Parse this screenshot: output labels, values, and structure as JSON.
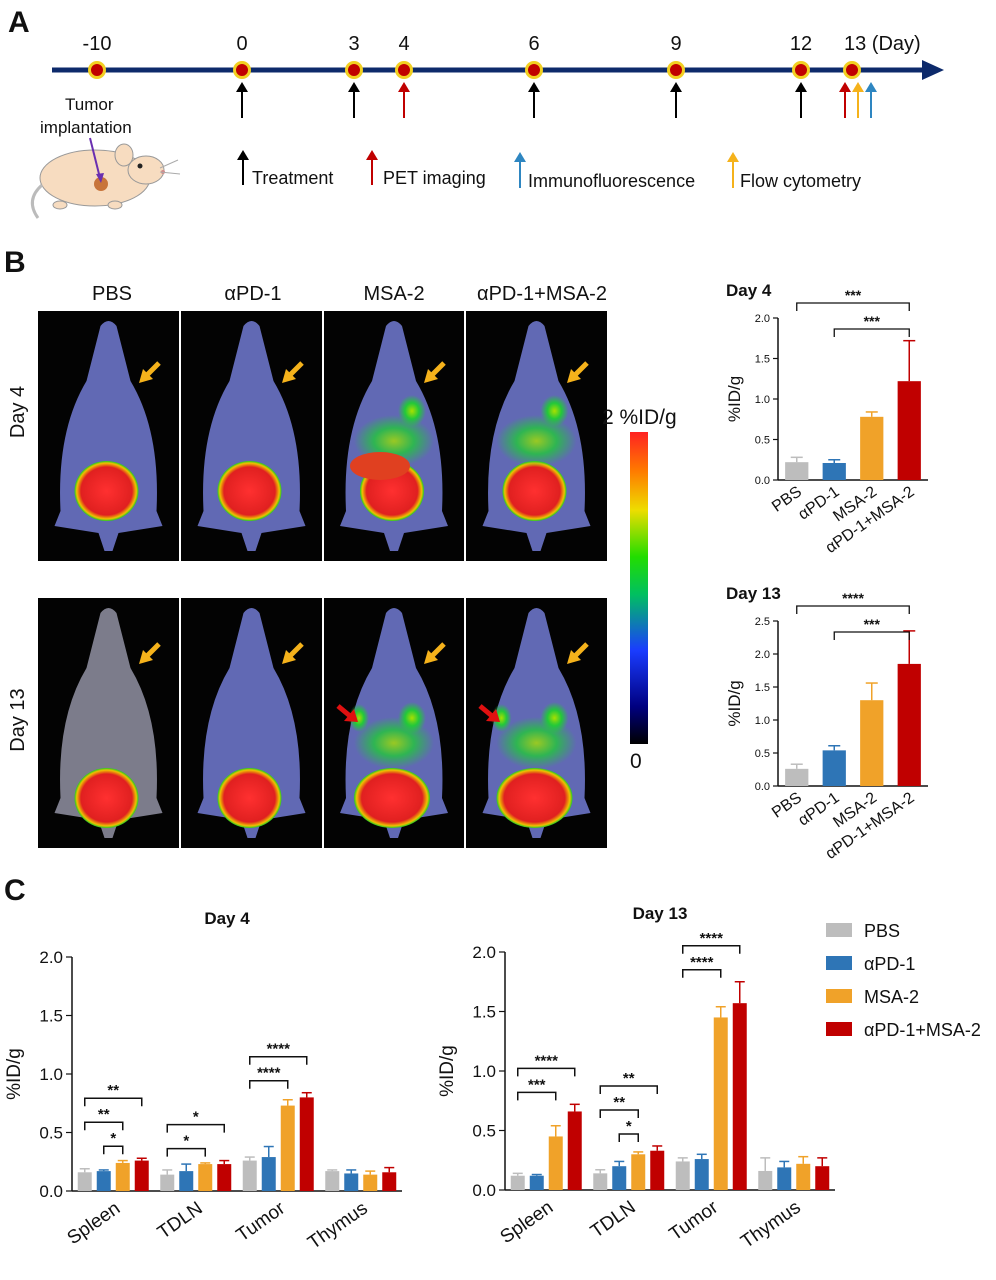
{
  "panel_labels": [
    "A",
    "B",
    "C"
  ],
  "colors": {
    "PBS": "#bdbdbd",
    "aPD-1": "#2e75b6",
    "MSA-2": "#f0a229",
    "combo": "#c00000",
    "timeline": "#0d2a6b",
    "treatment_arrow": "#000000",
    "pet_arrow": "#c00000",
    "if_arrow": "#2e86c1",
    "flow_arrow": "#f5b21b"
  },
  "timeline": {
    "days": [
      "-10",
      "0",
      "3",
      "4",
      "6",
      "9",
      "12",
      "13 (Day)"
    ],
    "tumor_label_line1": "Tumor",
    "tumor_label_line2": "implantation",
    "legend": {
      "treatment": "Treatment",
      "pet": "PET imaging",
      "immuno": "Immunofluorescence",
      "flow": "Flow cytometry"
    }
  },
  "imaging": {
    "columns": [
      "PBS",
      "αPD-1",
      "MSA-2",
      "αPD-1+MSA-2"
    ],
    "rows": [
      "Day 4",
      "Day 13"
    ],
    "colorbar_max": "2 %ID/g",
    "colorbar_min": "0"
  },
  "chart_data": [
    {
      "type": "bar",
      "title": "Day 4",
      "ylabel": "%ID/g",
      "categories": [
        "PBS",
        "αPD-1",
        "MSA-2",
        "αPD-1+MSA-2"
      ],
      "values": [
        0.22,
        0.21,
        0.78,
        1.22
      ],
      "errors": [
        0.06,
        0.04,
        0.06,
        0.5
      ],
      "ylim": [
        0,
        2.0
      ],
      "yticks": [
        "0.0",
        "0.5",
        "1.0",
        "1.5",
        "2.0"
      ],
      "significance": [
        {
          "from": "PBS",
          "to": "αPD-1+MSA-2",
          "label": "***"
        },
        {
          "from": "αPD-1",
          "to": "αPD-1+MSA-2",
          "label": "***"
        }
      ]
    },
    {
      "type": "bar",
      "title": "Day 13",
      "ylabel": "%ID/g",
      "categories": [
        "PBS",
        "αPD-1",
        "MSA-2",
        "αPD-1+MSA-2"
      ],
      "values": [
        0.26,
        0.54,
        1.3,
        1.85
      ],
      "errors": [
        0.07,
        0.07,
        0.26,
        0.5
      ],
      "ylim": [
        0,
        2.5
      ],
      "yticks": [
        "0.0",
        "0.5",
        "1.0",
        "1.5",
        "2.0",
        "2.5"
      ],
      "significance": [
        {
          "from": "PBS",
          "to": "αPD-1+MSA-2",
          "label": "****"
        },
        {
          "from": "αPD-1",
          "to": "αPD-1+MSA-2",
          "label": "***"
        }
      ]
    },
    {
      "type": "bar",
      "title": "Day 4",
      "ylabel": "%ID/g",
      "categories": [
        "Spleen",
        "TDLN",
        "Tumor",
        "Thymus"
      ],
      "series": [
        {
          "name": "PBS",
          "values": [
            0.16,
            0.14,
            0.26,
            0.17
          ],
          "errors": [
            0.03,
            0.04,
            0.03,
            0.01
          ]
        },
        {
          "name": "αPD-1",
          "values": [
            0.17,
            0.17,
            0.29,
            0.15
          ],
          "errors": [
            0.01,
            0.06,
            0.09,
            0.03
          ]
        },
        {
          "name": "MSA-2",
          "values": [
            0.24,
            0.23,
            0.73,
            0.14
          ],
          "errors": [
            0.02,
            0.01,
            0.05,
            0.03
          ]
        },
        {
          "name": "αPD-1+MSA-2",
          "values": [
            0.26,
            0.23,
            0.8,
            0.16
          ],
          "errors": [
            0.02,
            0.03,
            0.04,
            0.04
          ]
        }
      ],
      "ylim": [
        0,
        2.0
      ],
      "yticks": [
        "0.0",
        "0.5",
        "1.0",
        "1.5",
        "2.0"
      ],
      "significance": [
        {
          "group": 0,
          "from": 0,
          "to": 3,
          "label": "**",
          "level": 3
        },
        {
          "group": 0,
          "from": 0,
          "to": 2,
          "label": "**",
          "level": 2
        },
        {
          "group": 0,
          "from": 1,
          "to": 2,
          "label": "*",
          "level": 1
        },
        {
          "group": 1,
          "from": 0,
          "to": 3,
          "label": "*",
          "level": 2
        },
        {
          "group": 1,
          "from": 0,
          "to": 2,
          "label": "*",
          "level": 1
        },
        {
          "group": 2,
          "from": 0,
          "to": 3,
          "label": "****",
          "level": 2
        },
        {
          "group": 2,
          "from": 0,
          "to": 2,
          "label": "****",
          "level": 1
        }
      ]
    },
    {
      "type": "bar",
      "title": "Day 13",
      "ylabel": "%ID/g",
      "categories": [
        "Spleen",
        "TDLN",
        "Tumor",
        "Thymus"
      ],
      "series": [
        {
          "name": "PBS",
          "values": [
            0.12,
            0.14,
            0.24,
            0.16
          ],
          "errors": [
            0.02,
            0.03,
            0.03,
            0.11
          ]
        },
        {
          "name": "αPD-1",
          "values": [
            0.12,
            0.2,
            0.26,
            0.19
          ],
          "errors": [
            0.01,
            0.04,
            0.04,
            0.05
          ]
        },
        {
          "name": "MSA-2",
          "values": [
            0.45,
            0.3,
            1.45,
            0.22
          ],
          "errors": [
            0.09,
            0.02,
            0.09,
            0.06
          ]
        },
        {
          "name": "αPD-1+MSA-2",
          "values": [
            0.66,
            0.33,
            1.57,
            0.2
          ],
          "errors": [
            0.06,
            0.04,
            0.18,
            0.07
          ]
        }
      ],
      "ylim": [
        0,
        2.0
      ],
      "yticks": [
        "0.0",
        "0.5",
        "1.0",
        "1.5",
        "2.0"
      ],
      "significance": [
        {
          "group": 0,
          "from": 0,
          "to": 3,
          "label": "****",
          "level": 2
        },
        {
          "group": 0,
          "from": 0,
          "to": 2,
          "label": "***",
          "level": 1
        },
        {
          "group": 1,
          "from": 0,
          "to": 3,
          "label": "**",
          "level": 3
        },
        {
          "group": 1,
          "from": 0,
          "to": 2,
          "label": "**",
          "level": 2
        },
        {
          "group": 1,
          "from": 1,
          "to": 2,
          "label": "*",
          "level": 1
        },
        {
          "group": 2,
          "from": 0,
          "to": 3,
          "label": "****",
          "level": 2
        },
        {
          "group": 2,
          "from": 0,
          "to": 2,
          "label": "****",
          "level": 1
        }
      ]
    }
  ],
  "legend_c": [
    "PBS",
    "αPD-1",
    "MSA-2",
    "αPD-1+MSA-2"
  ]
}
